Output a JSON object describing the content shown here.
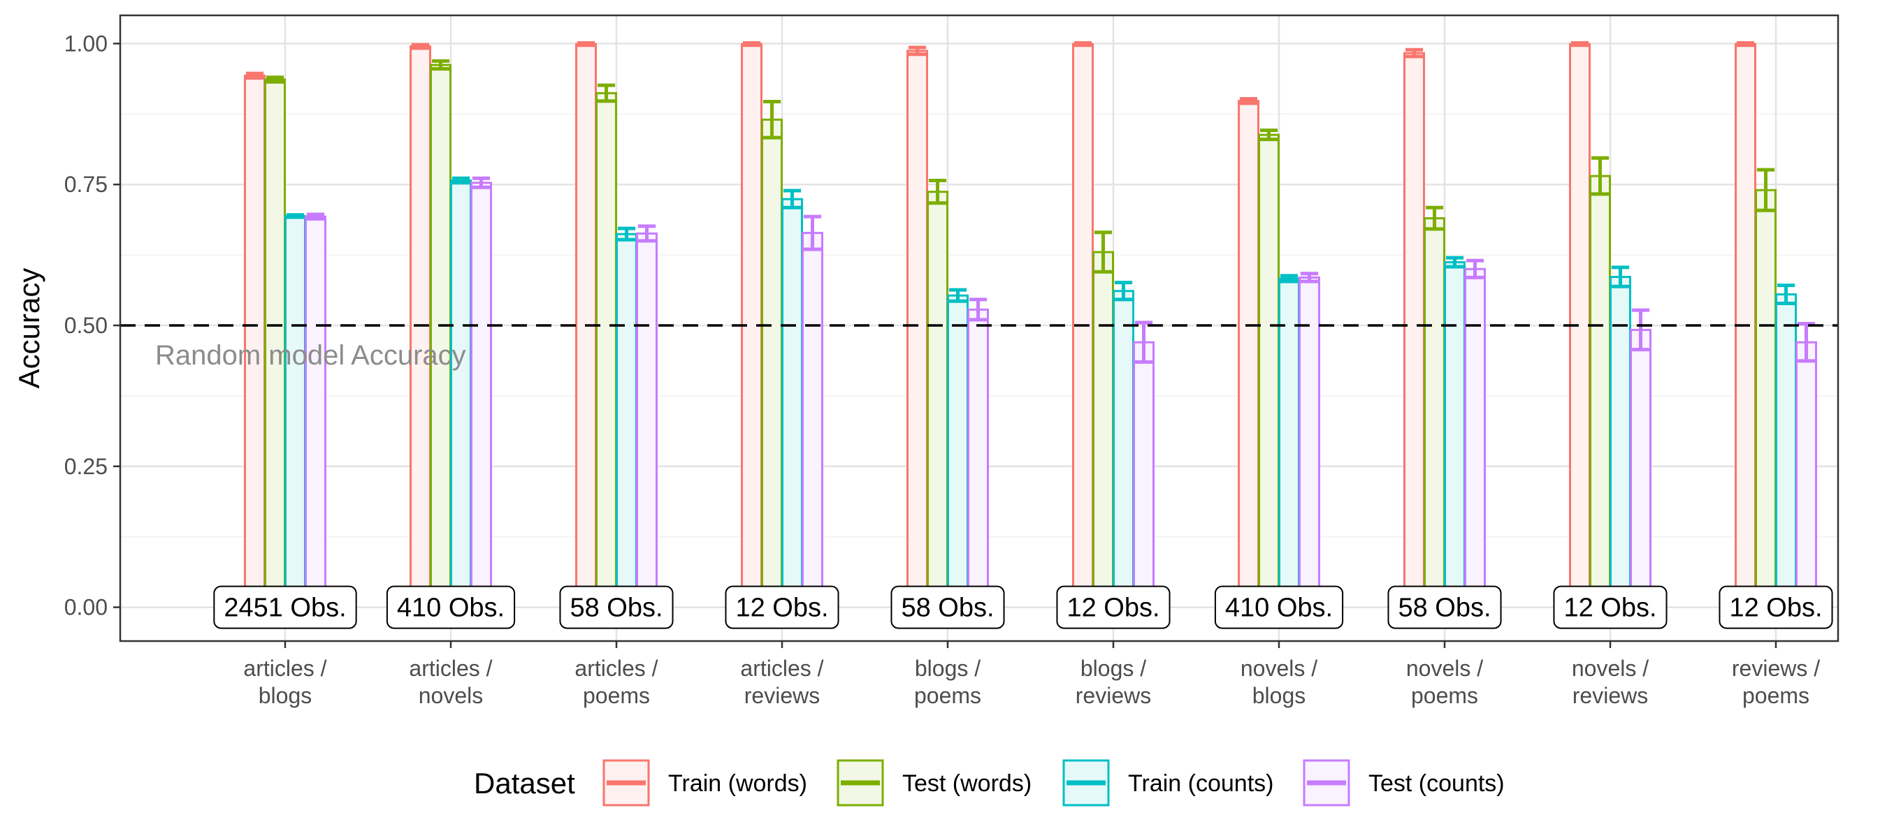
{
  "chart_data": {
    "type": "bar",
    "ylabel": "Accuracy",
    "ylim": [
      -0.06,
      1.05
    ],
    "yticks": [
      {
        "value": 0.0,
        "label": "0.00"
      },
      {
        "value": 0.25,
        "label": "0.25"
      },
      {
        "value": 0.5,
        "label": "0.50"
      },
      {
        "value": 0.75,
        "label": "0.75"
      },
      {
        "value": 1.0,
        "label": "1.00"
      }
    ],
    "grid": true,
    "categories": [
      {
        "line1": "articles /",
        "line2": "blogs",
        "obs": "2451 Obs."
      },
      {
        "line1": "articles /",
        "line2": "novels",
        "obs": "410 Obs."
      },
      {
        "line1": "articles /",
        "line2": "poems",
        "obs": "58 Obs."
      },
      {
        "line1": "articles /",
        "line2": "reviews",
        "obs": "12 Obs."
      },
      {
        "line1": "blogs /",
        "line2": "poems",
        "obs": "58 Obs."
      },
      {
        "line1": "blogs /",
        "line2": "reviews",
        "obs": "12 Obs."
      },
      {
        "line1": "novels /",
        "line2": "blogs",
        "obs": "410 Obs."
      },
      {
        "line1": "novels /",
        "line2": "poems",
        "obs": "58 Obs."
      },
      {
        "line1": "novels /",
        "line2": "reviews",
        "obs": "12 Obs."
      },
      {
        "line1": "reviews /",
        "line2": "poems",
        "obs": "12 Obs."
      }
    ],
    "series": [
      {
        "name": "Train (words)",
        "color": "#F8766D",
        "fill": "#FEF1F0",
        "values": [
          0.943,
          0.995,
          0.999,
          0.999,
          0.987,
          0.999,
          0.898,
          0.983,
          0.999,
          0.999
        ],
        "errors": [
          0.004,
          0.003,
          0.002,
          0.002,
          0.006,
          0.002,
          0.004,
          0.006,
          0.002,
          0.002
        ]
      },
      {
        "name": "Test (words)",
        "color": "#7CAE00",
        "fill": "#F2F7E6",
        "values": [
          0.936,
          0.962,
          0.912,
          0.865,
          0.737,
          0.63,
          0.838,
          0.69,
          0.765,
          0.74
        ],
        "errors": [
          0.004,
          0.007,
          0.014,
          0.032,
          0.02,
          0.035,
          0.008,
          0.019,
          0.032,
          0.036
        ]
      },
      {
        "name": "Train (counts)",
        "color": "#00BFC4",
        "fill": "#E6F9F9",
        "values": [
          0.694,
          0.757,
          0.662,
          0.724,
          0.553,
          0.561,
          0.583,
          0.612,
          0.586,
          0.555
        ],
        "errors": [
          0.002,
          0.004,
          0.01,
          0.015,
          0.01,
          0.015,
          0.005,
          0.008,
          0.017,
          0.016
        ]
      },
      {
        "name": "Test (counts)",
        "color": "#C77CFF",
        "fill": "#F9F2FF",
        "values": [
          0.693,
          0.753,
          0.663,
          0.664,
          0.528,
          0.47,
          0.585,
          0.6,
          0.492,
          0.47
        ],
        "errors": [
          0.004,
          0.008,
          0.013,
          0.029,
          0.018,
          0.035,
          0.007,
          0.015,
          0.035,
          0.033
        ]
      }
    ],
    "reference_line": {
      "value": 0.5,
      "label": "Random model Accuracy"
    },
    "legend": {
      "title": "Dataset",
      "position": "bottom"
    }
  }
}
